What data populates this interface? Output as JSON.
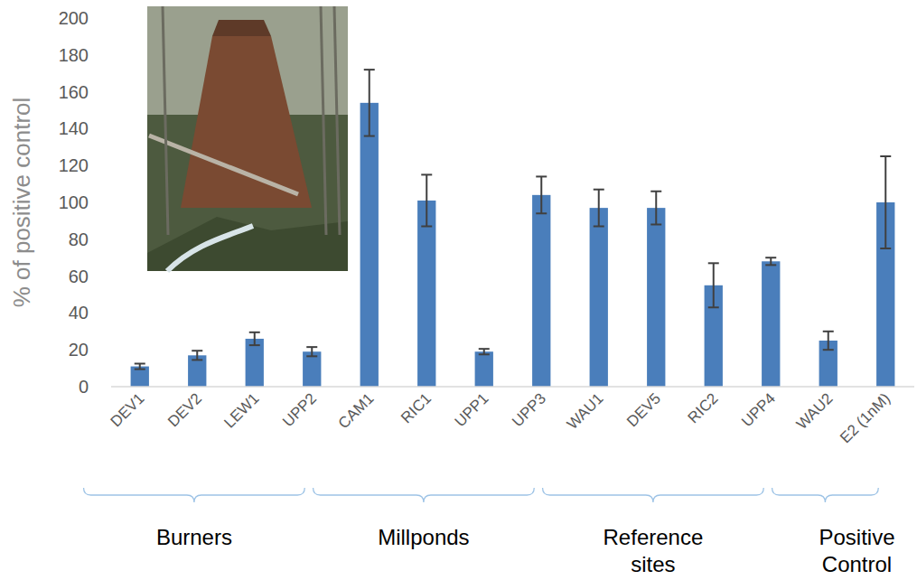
{
  "chart_data": {
    "type": "bar",
    "y_label": "% of positive control",
    "categories": [
      "DEV1",
      "DEV2",
      "LEW1",
      "UPP2",
      "CAM1",
      "RIC1",
      "UPP1",
      "UPP3",
      "WAU1",
      "DEV5",
      "RIC2",
      "UPP4",
      "WAU2",
      "E2 (1nM)"
    ],
    "values": [
      11,
      17,
      26,
      19,
      154,
      101,
      19,
      104,
      97,
      97,
      55,
      68,
      25,
      100
    ],
    "errors": [
      1.5,
      2.5,
      3.5,
      2.5,
      18,
      14,
      1.5,
      10,
      10,
      9,
      12,
      2,
      5,
      25
    ],
    "groups": [
      {
        "label": "Burners",
        "start": 0,
        "end": 3
      },
      {
        "label": "Millponds",
        "start": 4,
        "end": 7
      },
      {
        "label": "Reference sites",
        "start": 8,
        "end": 11
      },
      {
        "label": "Positive Control",
        "start": 12,
        "end": 13
      }
    ],
    "color": "#4a7ebb",
    "ylim": [
      0,
      200
    ],
    "yticks": [
      0,
      20,
      40,
      60,
      80,
      100,
      120,
      140,
      160,
      180,
      200
    ],
    "grid": false
  }
}
